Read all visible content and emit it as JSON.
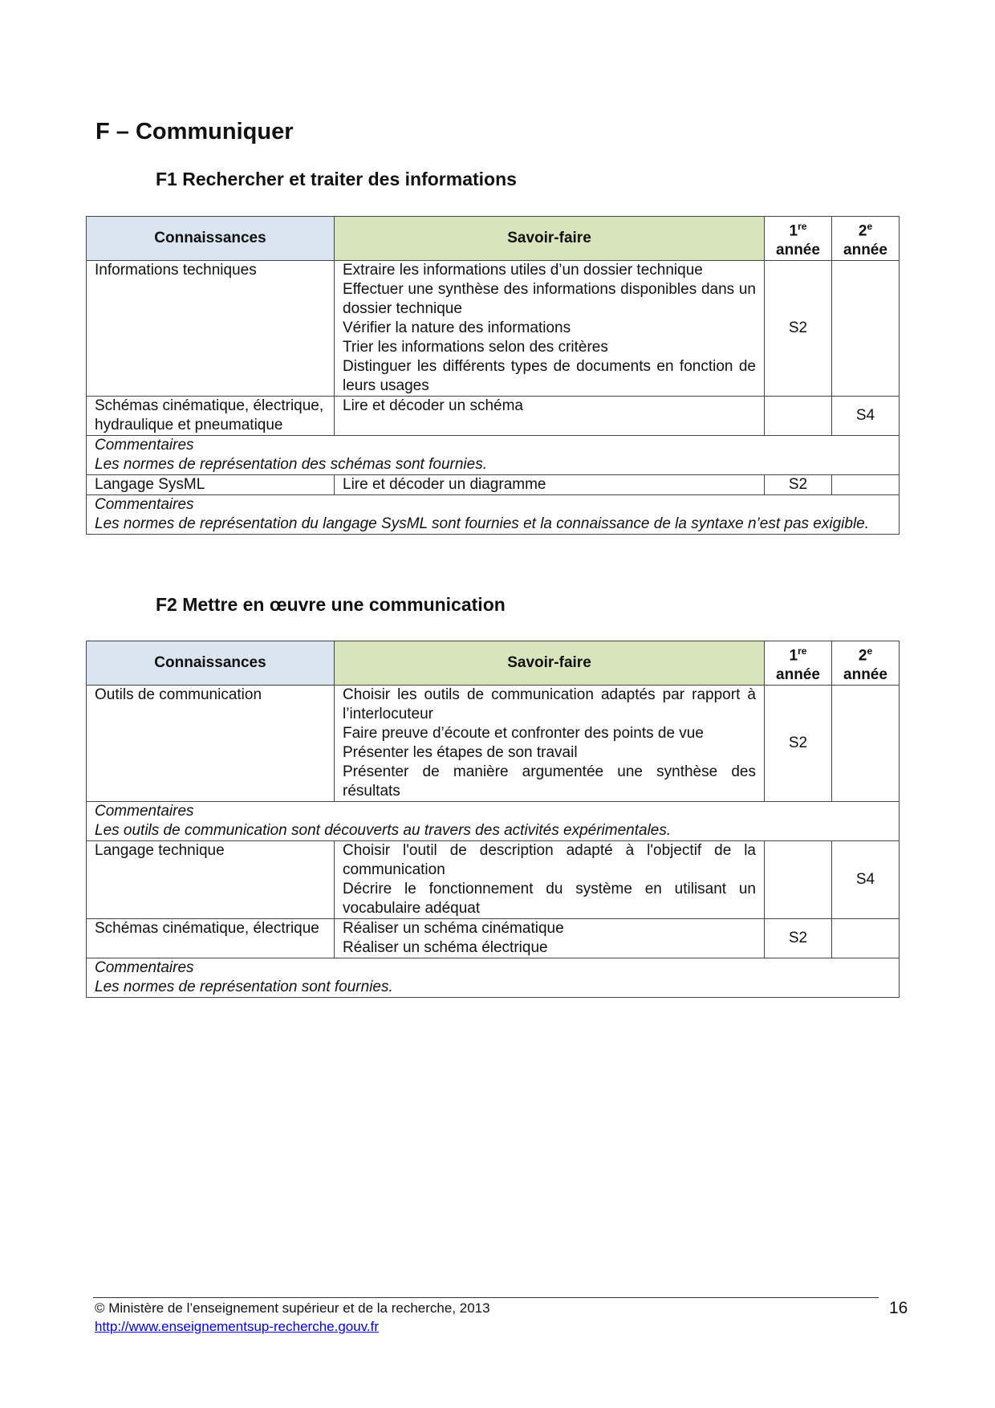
{
  "section_title": "F – Communiquer",
  "headers": {
    "connaissances": "Connaissances",
    "savoir_faire": "Savoir-faire",
    "y1_num": "1",
    "y1_sup": "re",
    "y2_num": "2",
    "y2_sup": "e",
    "annee": "année"
  },
  "f1": {
    "code": "F1",
    "title": "Rechercher et traiter des informations",
    "rows": [
      {
        "connaissance": "Informations techniques",
        "savoir_faire": [
          "Extraire les informations utiles d’un dossier technique",
          "Effectuer une synthèse des informations disponibles dans un dossier technique",
          "Vérifier la nature des informations",
          "Trier les informations selon des critères",
          "Distinguer les différents types de documents en fonction de leurs usages"
        ],
        "y1": "S2",
        "y2": ""
      },
      {
        "connaissance": "Schémas cinématique, électrique, hydraulique et pneumatique",
        "savoir_faire": [
          "Lire et décoder un schéma"
        ],
        "y1": "",
        "y2": "S4"
      },
      {
        "comment_label": "Commentaires",
        "comment": "Les normes de représentation des schémas sont fournies."
      },
      {
        "connaissance": "Langage SysML",
        "savoir_faire": [
          "Lire et décoder un diagramme"
        ],
        "y1": "S2",
        "y2": ""
      },
      {
        "comment_label": "Commentaires",
        "comment": "Les normes de représentation du langage SysML sont fournies et la connaissance de la syntaxe n’est pas exigible."
      }
    ]
  },
  "f2": {
    "code": "F2",
    "title": "Mettre en œuvre une communication",
    "rows": [
      {
        "connaissance": "Outils de communication",
        "savoir_faire": [
          "Choisir les outils de communication adaptés par rapport à l’interlocuteur",
          "Faire preuve d’écoute et confronter des points de vue",
          "Présenter les étapes de son travail",
          "Présenter de manière argumentée une synthèse des résultats"
        ],
        "y1": "S2",
        "y2": ""
      },
      {
        "comment_label": "Commentaires",
        "comment": "Les outils de communication sont découverts au travers des activités expérimentales."
      },
      {
        "connaissance": "Langage technique",
        "savoir_faire": [
          "Choisir l'outil de description adapté à l'objectif de la communication",
          "Décrire le fonctionnement du système en utilisant un vocabulaire adéquat"
        ],
        "y1": "",
        "y2": "S4"
      },
      {
        "connaissance": "Schémas cinématique, électrique",
        "savoir_faire": [
          "Réaliser un schéma cinématique",
          "Réaliser un schéma électrique"
        ],
        "y1": "S2",
        "y2": ""
      },
      {
        "comment_label": "Commentaires",
        "comment": "Les normes de représentation sont fournies."
      }
    ]
  },
  "footer": {
    "copyright": "© Ministère de l’enseignement supérieur et de la recherche, 2013",
    "link": "http://www.enseignementsup-recherche.gouv.fr",
    "page": "16"
  },
  "colors": {
    "connaissances_header": "#dbe5f1",
    "savoir_faire_header": "#d7e4bc"
  }
}
